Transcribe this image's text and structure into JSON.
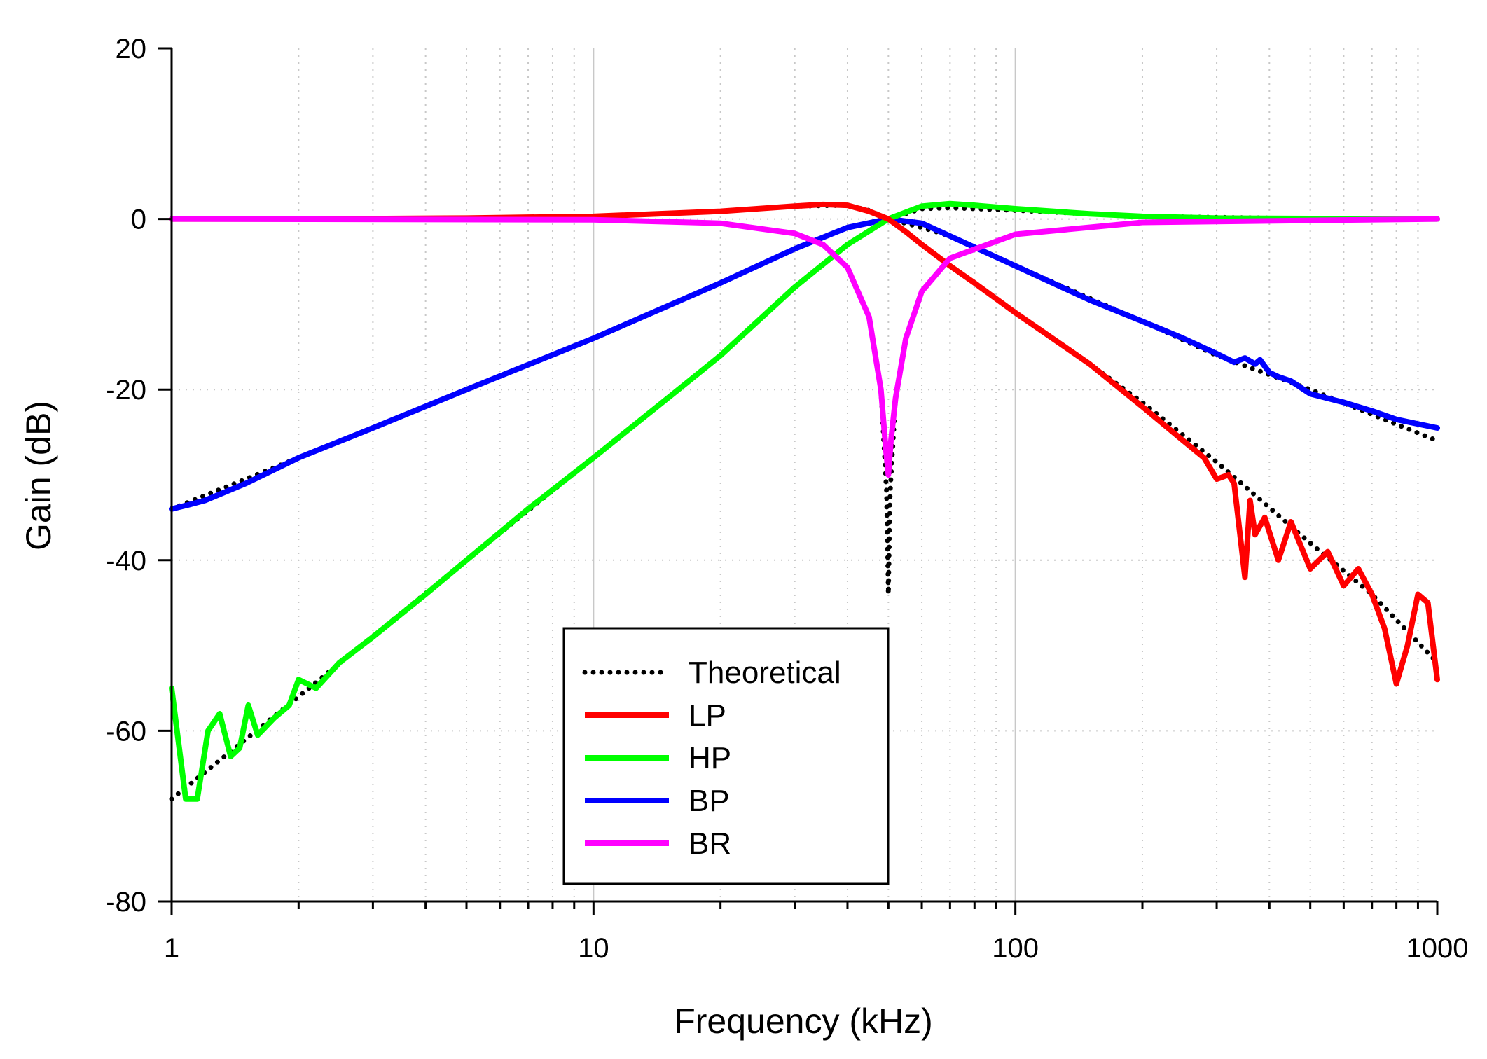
{
  "chart_data": {
    "type": "line",
    "title": "",
    "xlabel": "Frequency (kHz)",
    "ylabel": "Gain (dB)",
    "xscale": "log",
    "xlim": [
      1,
      1000
    ],
    "ylim": [
      -80,
      20
    ],
    "x_ticks": [
      1,
      10,
      100,
      1000
    ],
    "x_tick_labels": [
      "1",
      "10",
      "100",
      "1000"
    ],
    "y_ticks": [
      -80,
      -60,
      -40,
      -20,
      0,
      20
    ],
    "y_tick_labels": [
      "-80",
      "-60",
      "-40",
      "-20",
      "0",
      "20"
    ],
    "grid": "major-solid, minor-dotted",
    "legend_position": "bottom-center",
    "series": [
      {
        "name": "Theoretical",
        "color": "#000000",
        "style": "dotted",
        "traces": [
          {
            "x": [
              1,
              2,
              5,
              10,
              20,
              30,
              40,
              45,
              50,
              60,
              70,
              80,
              100,
              150,
              200,
              300,
              500,
              700,
              1000
            ],
            "y": [
              0,
              0,
              0.1,
              0.3,
              0.9,
              1.5,
              1.6,
              1.0,
              0,
              -3,
              -5.5,
              -7.5,
              -11,
              -17,
              -21.5,
              -28.5,
              -38,
              -44,
              -52
            ]
          },
          {
            "x": [
              1,
              2,
              5,
              10,
              20,
              30,
              40,
              50,
              60,
              70,
              80,
              100,
              200,
              500,
              1000
            ],
            "y": [
              -68,
              -56,
              -40,
              -28,
              -16,
              -8,
              -3,
              0,
              1.2,
              1.3,
              1.2,
              1.0,
              0.3,
              0.05,
              0
            ]
          },
          {
            "x": [
              1,
              2,
              3,
              5,
              10,
              20,
              30,
              40,
              50,
              60,
              70,
              100,
              200,
              300,
              500,
              1000
            ],
            "y": [
              -34,
              -28,
              -24.5,
              -20,
              -14,
              -7.5,
              -3.5,
              -1,
              0,
              -1,
              -2,
              -5.5,
              -12,
              -16,
              -20,
              -26
            ]
          },
          {
            "x": [
              1,
              10,
              20,
              30,
              35,
              40,
              45,
              48,
              49.5,
              50,
              50.5,
              52,
              55,
              60,
              70,
              100,
              200,
              1000
            ],
            "y": [
              0,
              -0.1,
              -0.5,
              -1.7,
              -3,
              -5.7,
              -11.5,
              -20,
              -32,
              -44,
              -32,
              -21,
              -14,
              -8.5,
              -4.6,
              -1.8,
              -0.4,
              0
            ]
          }
        ]
      },
      {
        "name": "LP",
        "color": "#ff0000",
        "style": "solid",
        "x": [
          1,
          2,
          5,
          10,
          20,
          30,
          35,
          40,
          45,
          50,
          55,
          60,
          70,
          80,
          100,
          150,
          200,
          250,
          280,
          300,
          320,
          330,
          350,
          360,
          370,
          390,
          420,
          450,
          500,
          550,
          600,
          650,
          700,
          750,
          800,
          850,
          900,
          950,
          1000
        ],
        "y": [
          0,
          0,
          0.1,
          0.3,
          0.9,
          1.5,
          1.7,
          1.6,
          0.9,
          0,
          -1.5,
          -3,
          -5.5,
          -7.5,
          -11,
          -17,
          -22,
          -26,
          -28,
          -30.5,
          -30,
          -31,
          -42,
          -33,
          -37,
          -35,
          -40,
          -35.5,
          -41,
          -39,
          -43,
          -41,
          -44,
          -48,
          -54.5,
          -50,
          -44,
          -45,
          -54
        ]
      },
      {
        "name": "HP",
        "color": "#00ff00",
        "style": "solid",
        "x": [
          1,
          1.08,
          1.15,
          1.22,
          1.3,
          1.38,
          1.45,
          1.52,
          1.6,
          1.75,
          1.9,
          2.0,
          2.2,
          2.5,
          3,
          4,
          5,
          7,
          10,
          15,
          20,
          30,
          40,
          50,
          60,
          70,
          80,
          100,
          150,
          200,
          300,
          500,
          1000
        ],
        "y": [
          -55,
          -68,
          -68,
          -60,
          -58,
          -63,
          -62,
          -57,
          -60.5,
          -58.5,
          -57,
          -54,
          -55,
          -52,
          -49,
          -44,
          -40,
          -34,
          -28,
          -21,
          -16,
          -8,
          -3,
          0,
          1.5,
          1.8,
          1.6,
          1.2,
          0.6,
          0.3,
          0.1,
          0.05,
          0
        ]
      },
      {
        "name": "BP",
        "color": "#0000ff",
        "style": "solid",
        "x": [
          1,
          1.1,
          1.2,
          1.5,
          2,
          3,
          5,
          10,
          20,
          30,
          40,
          50,
          60,
          70,
          100,
          150,
          200,
          250,
          300,
          330,
          350,
          370,
          380,
          400,
          420,
          450,
          500,
          600,
          700,
          800,
          1000
        ],
        "y": [
          -34,
          -33.5,
          -33,
          -31,
          -28,
          -24.5,
          -20,
          -14,
          -7.5,
          -3.5,
          -1,
          0,
          -0.5,
          -2,
          -5.5,
          -9.5,
          -12,
          -14,
          -15.8,
          -16.8,
          -16.3,
          -17,
          -16.5,
          -18,
          -18.5,
          -19,
          -20.5,
          -21.5,
          -22.5,
          -23.5,
          -24.5
        ]
      },
      {
        "name": "BR",
        "color": "#ff00ff",
        "style": "solid",
        "x": [
          1,
          10,
          20,
          30,
          35,
          40,
          45,
          48,
          49.3,
          50,
          50.7,
          52,
          55,
          60,
          70,
          100,
          200,
          1000
        ],
        "y": [
          0,
          -0.1,
          -0.5,
          -1.7,
          -3,
          -5.7,
          -11.5,
          -20,
          -27,
          -30,
          -26,
          -21,
          -14,
          -8.5,
          -4.6,
          -1.8,
          -0.4,
          0
        ]
      }
    ]
  }
}
